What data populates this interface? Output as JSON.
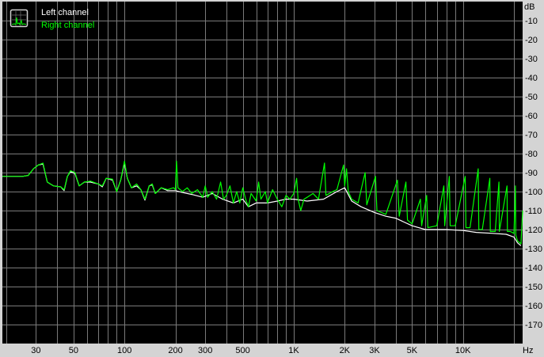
{
  "chart_data": {
    "type": "line",
    "title": "",
    "xlabel": "Hz",
    "ylabel": "dB",
    "x_scale": "log",
    "xlim": [
      19,
      22500
    ],
    "ylim": [
      -180,
      0
    ],
    "grid": true,
    "legend_placement": "top-left",
    "x_ticks": [
      {
        "value": 30,
        "label": "30"
      },
      {
        "value": 50,
        "label": "50"
      },
      {
        "value": 100,
        "label": "100"
      },
      {
        "value": 200,
        "label": "200"
      },
      {
        "value": 300,
        "label": "300"
      },
      {
        "value": 500,
        "label": "500"
      },
      {
        "value": 1000,
        "label": "1K"
      },
      {
        "value": 2000,
        "label": "2K"
      },
      {
        "value": 3000,
        "label": "3K"
      },
      {
        "value": 5000,
        "label": "5K"
      },
      {
        "value": 10000,
        "label": "10K"
      }
    ],
    "y_ticks": [
      {
        "value": -10,
        "label": "-10"
      },
      {
        "value": -20,
        "label": "-20"
      },
      {
        "value": -30,
        "label": "-30"
      },
      {
        "value": -40,
        "label": "-40"
      },
      {
        "value": -50,
        "label": "-50"
      },
      {
        "value": -60,
        "label": "-60"
      },
      {
        "value": -70,
        "label": "-70"
      },
      {
        "value": -80,
        "label": "-80"
      },
      {
        "value": -90,
        "label": "-90"
      },
      {
        "value": -100,
        "label": "-100"
      },
      {
        "value": -110,
        "label": "-110"
      },
      {
        "value": -120,
        "label": "-120"
      },
      {
        "value": -130,
        "label": "-130"
      },
      {
        "value": -140,
        "label": "-140"
      },
      {
        "value": -150,
        "label": "-150"
      },
      {
        "value": -160,
        "label": "-160"
      },
      {
        "value": -170,
        "label": "-170"
      }
    ],
    "series": [
      {
        "name": "Left channel",
        "color": "#ffffff",
        "points": [
          [
            19,
            -92
          ],
          [
            25,
            -92
          ],
          [
            27,
            -91.5
          ],
          [
            29,
            -88
          ],
          [
            31,
            -86
          ],
          [
            33,
            -85.5
          ],
          [
            35,
            -95
          ],
          [
            38,
            -97
          ],
          [
            42,
            -97.5
          ],
          [
            44,
            -99.5
          ],
          [
            46,
            -92
          ],
          [
            48,
            -89.5
          ],
          [
            51,
            -90.5
          ],
          [
            54,
            -97
          ],
          [
            58,
            -95
          ],
          [
            63,
            -95
          ],
          [
            70,
            -96
          ],
          [
            74,
            -97.5
          ],
          [
            78,
            -93
          ],
          [
            85,
            -94
          ],
          [
            90,
            -100
          ],
          [
            95,
            -94
          ],
          [
            100,
            -85
          ],
          [
            104,
            -93
          ],
          [
            110,
            -98
          ],
          [
            118,
            -97
          ],
          [
            125,
            -99
          ],
          [
            132,
            -104.5
          ],
          [
            140,
            -97
          ],
          [
            146,
            -96.5
          ],
          [
            152,
            -101
          ],
          [
            165,
            -98
          ],
          [
            180,
            -99.5
          ],
          [
            200,
            -99.5
          ],
          [
            220,
            -100.5
          ],
          [
            250,
            -101.5
          ],
          [
            290,
            -103
          ],
          [
            330,
            -101
          ],
          [
            380,
            -104
          ],
          [
            440,
            -106
          ],
          [
            500,
            -104
          ],
          [
            540,
            -108
          ],
          [
            600,
            -106
          ],
          [
            700,
            -106
          ],
          [
            800,
            -105
          ],
          [
            900,
            -104
          ],
          [
            1000,
            -104
          ],
          [
            1200,
            -105
          ],
          [
            1500,
            -104
          ],
          [
            1800,
            -100
          ],
          [
            2000,
            -98
          ],
          [
            2200,
            -105
          ],
          [
            2500,
            -108
          ],
          [
            3000,
            -111
          ],
          [
            3500,
            -113
          ],
          [
            4000,
            -114
          ],
          [
            5000,
            -118
          ],
          [
            6000,
            -120
          ],
          [
            8000,
            -120
          ],
          [
            10000,
            -120.5
          ],
          [
            12000,
            -121.5
          ],
          [
            15000,
            -122
          ],
          [
            18000,
            -122.5
          ],
          [
            20000,
            -124
          ],
          [
            21000,
            -127
          ],
          [
            22000,
            -128.5
          ]
        ]
      },
      {
        "name": "Right channel",
        "color": "#00ff00",
        "points": [
          [
            19,
            -92
          ],
          [
            25,
            -92
          ],
          [
            27,
            -91.5
          ],
          [
            29,
            -88
          ],
          [
            31,
            -86
          ],
          [
            33,
            -85
          ],
          [
            35,
            -95
          ],
          [
            38,
            -97
          ],
          [
            42,
            -97.5
          ],
          [
            44,
            -99
          ],
          [
            46,
            -92
          ],
          [
            48,
            -89
          ],
          [
            51,
            -90
          ],
          [
            54,
            -97
          ],
          [
            58,
            -95
          ],
          [
            63,
            -94.5
          ],
          [
            70,
            -96
          ],
          [
            74,
            -97
          ],
          [
            78,
            -93
          ],
          [
            85,
            -93.5
          ],
          [
            90,
            -100
          ],
          [
            95,
            -94
          ],
          [
            100,
            -84
          ],
          [
            104,
            -93
          ],
          [
            110,
            -98
          ],
          [
            118,
            -96
          ],
          [
            125,
            -99
          ],
          [
            132,
            -104
          ],
          [
            140,
            -97
          ],
          [
            146,
            -96
          ],
          [
            152,
            -101
          ],
          [
            165,
            -98
          ],
          [
            180,
            -99
          ],
          [
            195,
            -98
          ],
          [
            200,
            -99
          ],
          [
            203,
            -84
          ],
          [
            207,
            -98
          ],
          [
            220,
            -100
          ],
          [
            235,
            -98
          ],
          [
            250,
            -101
          ],
          [
            270,
            -99
          ],
          [
            290,
            -103
          ],
          [
            300,
            -97
          ],
          [
            310,
            -103
          ],
          [
            330,
            -100
          ],
          [
            350,
            -104
          ],
          [
            370,
            -95
          ],
          [
            385,
            -104
          ],
          [
            400,
            -102
          ],
          [
            420,
            -97
          ],
          [
            440,
            -106
          ],
          [
            460,
            -100
          ],
          [
            480,
            -106
          ],
          [
            500,
            -98
          ],
          [
            520,
            -104
          ],
          [
            540,
            -108
          ],
          [
            560,
            -101
          ],
          [
            600,
            -105
          ],
          [
            620,
            -95
          ],
          [
            640,
            -104
          ],
          [
            680,
            -100
          ],
          [
            700,
            -106
          ],
          [
            750,
            -99
          ],
          [
            800,
            -104
          ],
          [
            850,
            -108
          ],
          [
            900,
            -102
          ],
          [
            950,
            -104
          ],
          [
            1000,
            -101
          ],
          [
            1040,
            -93
          ],
          [
            1060,
            -104
          ],
          [
            1100,
            -110
          ],
          [
            1150,
            -104
          ],
          [
            1200,
            -103
          ],
          [
            1300,
            -101
          ],
          [
            1400,
            -104
          ],
          [
            1520,
            -85
          ],
          [
            1550,
            -102
          ],
          [
            1700,
            -100
          ],
          [
            1800,
            -99
          ],
          [
            1970,
            -86
          ],
          [
            2000,
            -97
          ],
          [
            2050,
            -88
          ],
          [
            2100,
            -100
          ],
          [
            2200,
            -104
          ],
          [
            2400,
            -106
          ],
          [
            2640,
            -90
          ],
          [
            2700,
            -107
          ],
          [
            3040,
            -92
          ],
          [
            3100,
            -110
          ],
          [
            3500,
            -112
          ],
          [
            4100,
            -94
          ],
          [
            4200,
            -113
          ],
          [
            4600,
            -95
          ],
          [
            4700,
            -115
          ],
          [
            5000,
            -117
          ],
          [
            5600,
            -104
          ],
          [
            5700,
            -118
          ],
          [
            6100,
            -102
          ],
          [
            6200,
            -119
          ],
          [
            7000,
            -118
          ],
          [
            7700,
            -97
          ],
          [
            7800,
            -118
          ],
          [
            8300,
            -92
          ],
          [
            8400,
            -118
          ],
          [
            9000,
            -118
          ],
          [
            10300,
            -92
          ],
          [
            10400,
            -119
          ],
          [
            11000,
            -119
          ],
          [
            12300,
            -88
          ],
          [
            12400,
            -120
          ],
          [
            13000,
            -120
          ],
          [
            14400,
            -93
          ],
          [
            14500,
            -121
          ],
          [
            15500,
            -121
          ],
          [
            16300,
            -95
          ],
          [
            16400,
            -121
          ],
          [
            18200,
            -97
          ],
          [
            18300,
            -121
          ],
          [
            19000,
            -121
          ],
          [
            20000,
            -122
          ],
          [
            20400,
            -97
          ],
          [
            20500,
            -123
          ],
          [
            21000,
            -126
          ],
          [
            22000,
            -127.5
          ],
          [
            22500,
            -110
          ]
        ]
      }
    ]
  }
}
